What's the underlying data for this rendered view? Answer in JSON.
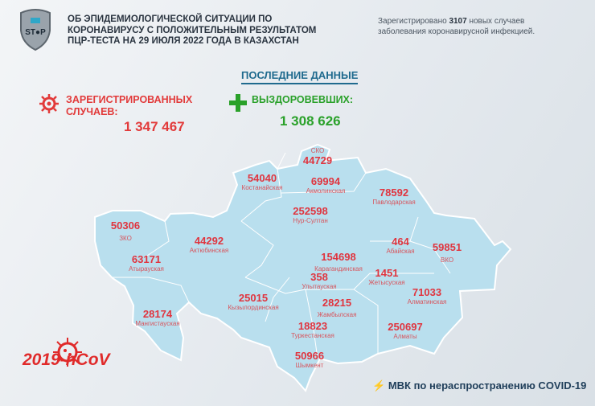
{
  "header": {
    "logo_text": "STOP",
    "title": "ОБ ЭПИДЕМИОЛОГИЧЕСКОЙ СИТУАЦИИ ПО КОРОНАВИРУСУ С ПОЛОЖИТЕЛЬНЫМ РЕЗУЛЬТАТОМ ПЦР-ТЕСТА НА 29 ИЮЛЯ 2022 ГОДА В КАЗАХСТАН",
    "note_prefix": "Зарегистрировано",
    "note_count": "3107",
    "note_suffix": "новых случаев заболевания коронавирусной инфекцией."
  },
  "latest_label": "ПОСЛЕДНИЕ ДАННЫЕ",
  "registered": {
    "label": "ЗАРЕГИСТРИРОВАННЫХ СЛУЧАЕВ:",
    "value": "1 347 467",
    "color": "#e23a3a"
  },
  "recovered": {
    "label": "ВЫЗДОРОВЕВШИХ:",
    "value": "1 308 626",
    "color": "#2aa12a"
  },
  "regions": [
    {
      "name": "СКО",
      "value": "44729"
    },
    {
      "name": "Костанайская",
      "value": "54040"
    },
    {
      "name": "Акмолинская",
      "value": "69994"
    },
    {
      "name": "Павлодарская",
      "value": "78592"
    },
    {
      "name": "Нур-Султан",
      "value": "252598"
    },
    {
      "name": "ЗКО",
      "value": "50306"
    },
    {
      "name": "Актюбинская",
      "value": "44292"
    },
    {
      "name": "Атырауская",
      "value": "63171"
    },
    {
      "name": "Абайская",
      "value": "464"
    },
    {
      "name": "ВКО",
      "value": "59851"
    },
    {
      "name": "Карагандинская",
      "value": "154698"
    },
    {
      "name": "Жетысуская",
      "value": "1451"
    },
    {
      "name": "Улытауская",
      "value": "358"
    },
    {
      "name": "Алматинская",
      "value": "71033"
    },
    {
      "name": "Кызылординская",
      "value": "25015"
    },
    {
      "name": "Жамбылская",
      "value": "28215"
    },
    {
      "name": "Мангистауская",
      "value": "28174"
    },
    {
      "name": "Туркестанская",
      "value": "18823"
    },
    {
      "name": "Алматы",
      "value": "250697"
    },
    {
      "name": "Шымкент",
      "value": "50966"
    }
  ],
  "footer": {
    "virus_label": "2019-nCoV",
    "organization": "МВК по нераспространению COVID-19"
  },
  "colors": {
    "map_fill": "#b9dfee",
    "map_border": "#ffffff",
    "number": "#e0353f"
  }
}
